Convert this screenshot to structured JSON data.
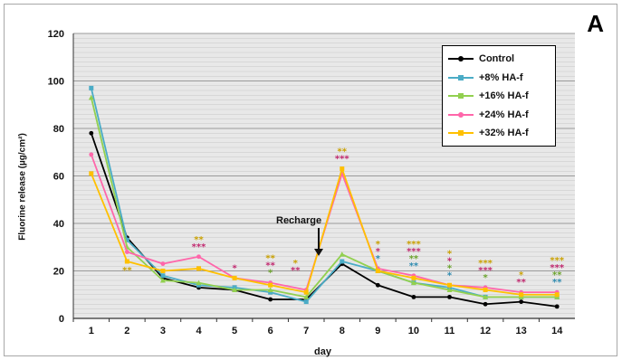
{
  "chart_data": {
    "type": "line",
    "panel_label": "A",
    "xlabel": "day",
    "ylabel": "Fluorine release (µg/cm²)",
    "categories": [
      "1",
      "2",
      "3",
      "4",
      "5",
      "6",
      "7",
      "8",
      "9",
      "10",
      "11",
      "12",
      "13",
      "14"
    ],
    "ylim": [
      0,
      120
    ],
    "yticks": [
      0,
      20,
      40,
      60,
      80,
      100,
      120
    ],
    "grid": "horizontal dense",
    "legend_position": "top-right",
    "annotation": "Recharge",
    "annotation_x": "7",
    "series": [
      {
        "name": "Control",
        "color": "#000000",
        "marker": "circle",
        "values": [
          78,
          34,
          17,
          13,
          12,
          8,
          8,
          23,
          14,
          9,
          9,
          6,
          7,
          5
        ]
      },
      {
        "name": "+8% HA-f",
        "color": "#4bacc6",
        "marker": "square",
        "values": [
          97,
          33,
          18,
          14,
          13,
          11,
          7,
          24,
          20,
          15,
          13,
          9,
          9,
          9
        ]
      },
      {
        "name": "+16% HA-f",
        "color": "#92d050",
        "marker": "triangle",
        "values": [
          93,
          30,
          16,
          15,
          12,
          12,
          9,
          27,
          20,
          15,
          12,
          9,
          9,
          9
        ]
      },
      {
        "name": "+24% HA-f",
        "color": "#ff66aa",
        "marker": "circle",
        "values": [
          69,
          28,
          23,
          26,
          17,
          15,
          12,
          61,
          21,
          18,
          14,
          13,
          11,
          11
        ]
      },
      {
        "name": "+32% HA-f",
        "color": "#ffc000",
        "marker": "square",
        "values": [
          61,
          24,
          20,
          21,
          17,
          14,
          11,
          63,
          20,
          17,
          14,
          12,
          10,
          10
        ]
      }
    ],
    "significance": [
      {
        "x": "2",
        "rows": [
          {
            "text": "**",
            "color": "#c9a000"
          }
        ]
      },
      {
        "x": "4",
        "rows": [
          {
            "text": "**",
            "color": "#c9a000"
          },
          {
            "text": "***",
            "color": "#c0286e"
          }
        ]
      },
      {
        "x": "5",
        "rows": [
          {
            "text": "*",
            "color": "#c0286e"
          }
        ]
      },
      {
        "x": "6",
        "rows": [
          {
            "text": "**",
            "color": "#c9a000"
          },
          {
            "text": "**",
            "color": "#c0286e"
          },
          {
            "text": "*",
            "color": "#6aa22c"
          }
        ]
      },
      {
        "x": "7",
        "rows": [
          {
            "text": "*",
            "color": "#c9a000"
          },
          {
            "text": "**",
            "color": "#c0286e"
          }
        ]
      },
      {
        "x": "8",
        "rows": [
          {
            "text": "**",
            "color": "#c9a000"
          },
          {
            "text": "***",
            "color": "#c0286e"
          }
        ]
      },
      {
        "x": "9",
        "rows": [
          {
            "text": "*",
            "color": "#c9a000"
          },
          {
            "text": "*",
            "color": "#c0286e"
          },
          {
            "text": "*",
            "color": "#2e8bb0"
          }
        ]
      },
      {
        "x": "10",
        "rows": [
          {
            "text": "***",
            "color": "#c9a000"
          },
          {
            "text": "***",
            "color": "#c0286e"
          },
          {
            "text": "**",
            "color": "#6aa22c"
          },
          {
            "text": "**",
            "color": "#2e8bb0"
          }
        ]
      },
      {
        "x": "11",
        "rows": [
          {
            "text": "*",
            "color": "#c9a000"
          },
          {
            "text": "*",
            "color": "#c0286e"
          },
          {
            "text": "*",
            "color": "#6aa22c"
          },
          {
            "text": "*",
            "color": "#2e8bb0"
          }
        ]
      },
      {
        "x": "12",
        "rows": [
          {
            "text": "***",
            "color": "#c9a000"
          },
          {
            "text": "***",
            "color": "#c0286e"
          },
          {
            "text": "*",
            "color": "#6aa22c"
          }
        ]
      },
      {
        "x": "13",
        "rows": [
          {
            "text": "*",
            "color": "#c9a000"
          },
          {
            "text": "**",
            "color": "#c0286e"
          }
        ]
      },
      {
        "x": "14",
        "rows": [
          {
            "text": "***",
            "color": "#c9a000"
          },
          {
            "text": "***",
            "color": "#c0286e"
          },
          {
            "text": "**",
            "color": "#6aa22c"
          },
          {
            "text": "**",
            "color": "#2e8bb0"
          }
        ]
      }
    ]
  }
}
